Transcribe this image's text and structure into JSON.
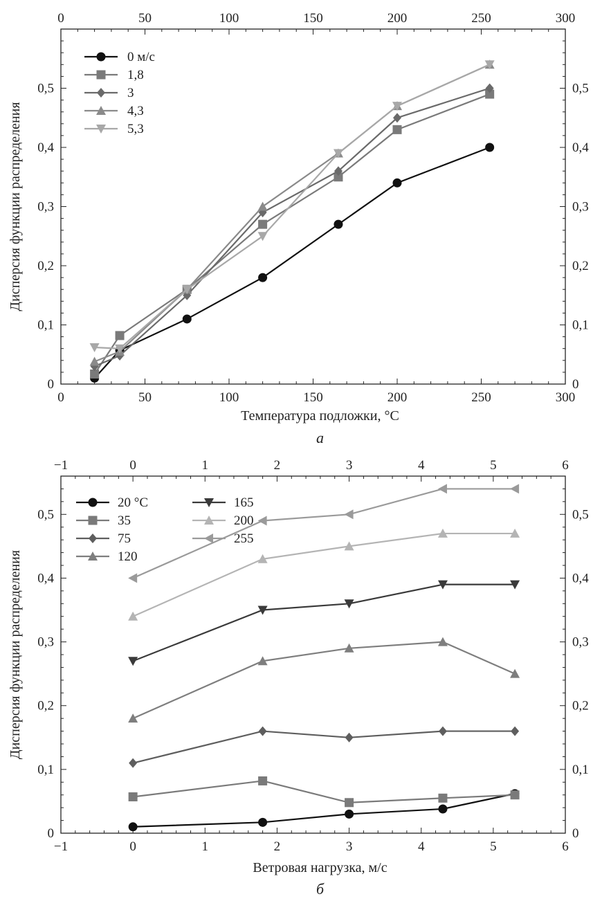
{
  "chart_data": [
    {
      "type": "line",
      "panel_label": "a",
      "xlabel": "Температура подложки, °C",
      "ylabel": "Дисперсия функции распределения",
      "xlim": [
        0,
        300
      ],
      "ylim": [
        0,
        0.6
      ],
      "x_ticks": [
        "0",
        "50",
        "100",
        "150",
        "200",
        "250",
        "300"
      ],
      "y_ticks": [
        "0",
        "0,1",
        "0,2",
        "0,3",
        "0,4",
        "0,5"
      ],
      "grid": false,
      "legend_position": "top-left",
      "series": [
        {
          "name": "0 м/с",
          "marker": "circle",
          "color": "#111111",
          "x": [
            20,
            35,
            75,
            120,
            165,
            200,
            255
          ],
          "y": [
            0.01,
            0.057,
            0.11,
            0.18,
            0.27,
            0.34,
            0.4
          ]
        },
        {
          "name": "1,8",
          "marker": "square",
          "color": "#7a7a7a",
          "x": [
            20,
            35,
            75,
            120,
            165,
            200,
            255
          ],
          "y": [
            0.017,
            0.082,
            0.16,
            0.27,
            0.35,
            0.43,
            0.49
          ]
        },
        {
          "name": "3",
          "marker": "diamond",
          "color": "#6a6a6a",
          "x": [
            20,
            35,
            75,
            120,
            165,
            200,
            255
          ],
          "y": [
            0.03,
            0.048,
            0.15,
            0.29,
            0.36,
            0.45,
            0.5
          ]
        },
        {
          "name": "4,3",
          "marker": "triangle-up",
          "color": "#8a8a8a",
          "x": [
            20,
            35,
            75,
            120,
            165,
            200,
            255
          ],
          "y": [
            0.038,
            0.055,
            0.16,
            0.3,
            0.39,
            0.47,
            0.54
          ]
        },
        {
          "name": "5,3",
          "marker": "triangle-down",
          "color": "#a8a8a8",
          "x": [
            20,
            35,
            75,
            120,
            165,
            200,
            255
          ],
          "y": [
            0.062,
            0.06,
            0.16,
            0.25,
            0.39,
            0.47,
            0.54
          ]
        }
      ]
    },
    {
      "type": "line",
      "panel_label": "б",
      "xlabel": "Ветровая нагрузка, м/с",
      "ylabel": "Дисперсия функции распределения",
      "xlim": [
        -1,
        6
      ],
      "ylim": [
        0,
        0.56
      ],
      "x_ticks": [
        "−1",
        "0",
        "1",
        "2",
        "3",
        "4",
        "5",
        "6"
      ],
      "y_ticks": [
        "0",
        "0,1",
        "0,2",
        "0,3",
        "0,4",
        "0,5"
      ],
      "grid": false,
      "legend_position": "top-left",
      "series": [
        {
          "name": "20 °C",
          "marker": "circle",
          "color": "#111111",
          "x": [
            0,
            1.8,
            3,
            4.3,
            5.3
          ],
          "y": [
            0.01,
            0.017,
            0.03,
            0.038,
            0.062
          ]
        },
        {
          "name": "35",
          "marker": "square",
          "color": "#7a7a7a",
          "x": [
            0,
            1.8,
            3,
            4.3,
            5.3
          ],
          "y": [
            0.057,
            0.082,
            0.048,
            0.055,
            0.06
          ]
        },
        {
          "name": "75",
          "marker": "diamond",
          "color": "#5e5e5e",
          "x": [
            0,
            1.8,
            3,
            4.3,
            5.3
          ],
          "y": [
            0.11,
            0.16,
            0.15,
            0.16,
            0.16
          ]
        },
        {
          "name": "120",
          "marker": "triangle-up",
          "color": "#7e7e7e",
          "x": [
            0,
            1.8,
            3,
            4.3,
            5.3
          ],
          "y": [
            0.18,
            0.27,
            0.29,
            0.3,
            0.25
          ]
        },
        {
          "name": "165",
          "marker": "triangle-down",
          "color": "#3a3a3a",
          "x": [
            0,
            1.8,
            3,
            4.3,
            5.3
          ],
          "y": [
            0.27,
            0.35,
            0.36,
            0.39,
            0.39
          ]
        },
        {
          "name": "200",
          "marker": "triangle-up",
          "color": "#b4b4b4",
          "x": [
            0,
            1.8,
            3,
            4.3,
            5.3
          ],
          "y": [
            0.34,
            0.43,
            0.45,
            0.47,
            0.47
          ]
        },
        {
          "name": "255",
          "marker": "triangle-left",
          "color": "#9a9a9a",
          "x": [
            0,
            1.8,
            3,
            4.3,
            5.3
          ],
          "y": [
            0.4,
            0.49,
            0.5,
            0.54,
            0.54
          ]
        }
      ]
    }
  ]
}
